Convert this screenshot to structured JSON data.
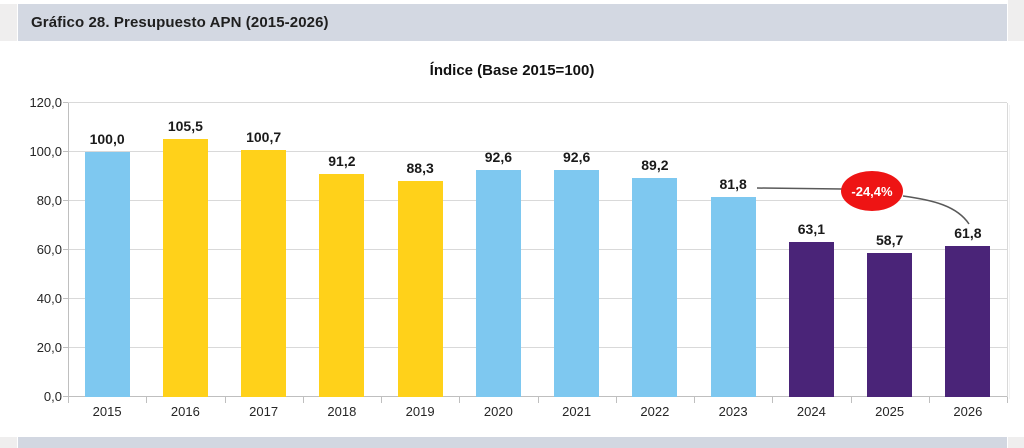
{
  "page": {
    "header_title": "Gráfico 28. Presupuesto APN (2015-2026)"
  },
  "chart_data": {
    "type": "bar",
    "title": "Índice (Base 2015=100)",
    "categories": [
      "2015",
      "2016",
      "2017",
      "2018",
      "2019",
      "2020",
      "2021",
      "2022",
      "2023",
      "2024",
      "2025",
      "2026"
    ],
    "values": [
      100.0,
      105.5,
      100.7,
      91.2,
      88.3,
      92.6,
      92.6,
      89.2,
      81.8,
      63.1,
      58.7,
      61.8
    ],
    "value_labels": [
      "100,0",
      "105,5",
      "100,7",
      "91,2",
      "88,3",
      "92,6",
      "92,6",
      "89,2",
      "81,8",
      "63,1",
      "58,7",
      "61,8"
    ],
    "bar_color_keys": [
      "blue",
      "yellow",
      "yellow",
      "yellow",
      "yellow",
      "blue",
      "blue",
      "blue",
      "blue",
      "purple",
      "purple",
      "purple"
    ],
    "colors": {
      "blue": "#7ec8f0",
      "yellow": "#ffd11a",
      "purple": "#4a2478",
      "annotation_red": "#ee1414",
      "connector_gray": "#595959"
    },
    "ylim": [
      0,
      120
    ],
    "yticks": [
      0,
      20,
      40,
      60,
      80,
      100,
      120
    ],
    "ytick_labels": [
      "0,0",
      "20,0",
      "40,0",
      "60,0",
      "80,0",
      "100,0",
      "120,0"
    ],
    "grid": "horizontal",
    "legend": "none",
    "annotation": {
      "text": "-24,4%",
      "shape": "ellipse",
      "from_category": "2023",
      "to_category": "2026",
      "meaning": "percent change from 2023 (81,8) to 2026 (61,8)"
    }
  }
}
